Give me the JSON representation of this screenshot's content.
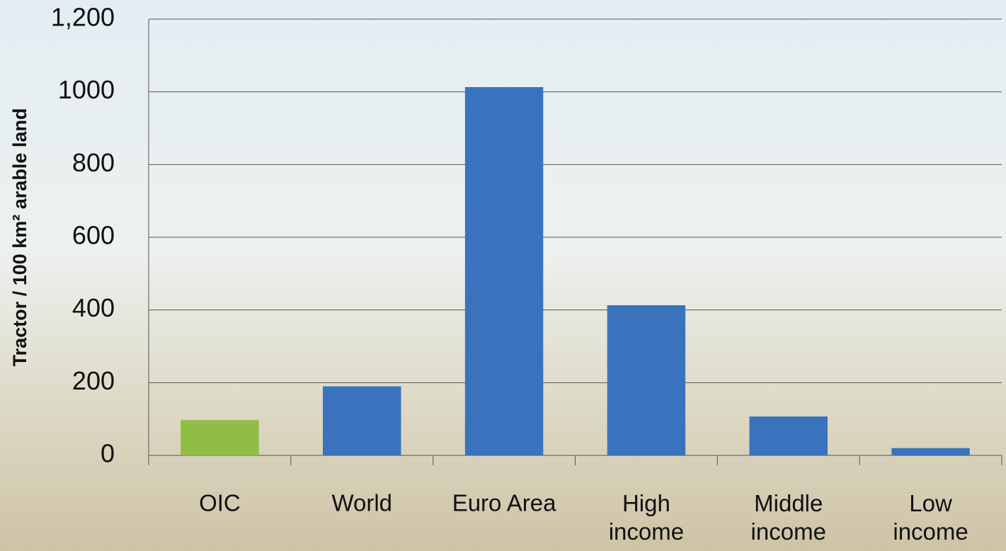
{
  "chart_data": {
    "type": "bar",
    "y_label": "Tractor / 100 km² arable land",
    "categories": [
      "OIC",
      "World",
      "Euro Area",
      "High\nincome",
      "Middle\nincome",
      "Low\nincome"
    ],
    "values": [
      97,
      190,
      1013,
      413,
      107,
      20
    ],
    "colors": [
      "#8fbd45",
      "#3a73bd",
      "#3a73bd",
      "#3a73bd",
      "#3a73bd",
      "#3a73bd"
    ],
    "ylim": [
      0,
      1200
    ],
    "yticks": [
      0,
      200,
      400,
      600,
      800,
      1000,
      {
        "value": 1200,
        "label": "1,200"
      }
    ],
    "grid": true
  }
}
